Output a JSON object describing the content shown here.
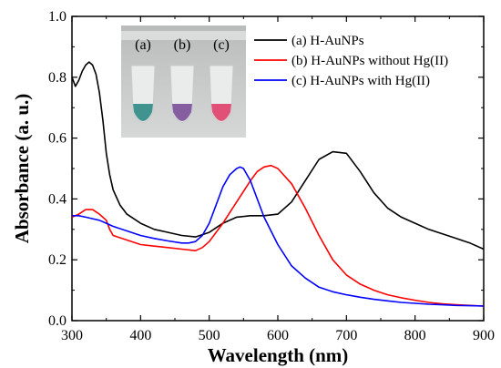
{
  "chart_data": {
    "type": "line",
    "xlabel": "Wavelength (nm)",
    "ylabel": "Absorbance (a. u.)",
    "xlim": [
      300,
      900
    ],
    "ylim": [
      0.0,
      1.0
    ],
    "xticks": [
      300,
      400,
      500,
      600,
      700,
      800,
      900
    ],
    "yticks": [
      0.0,
      0.2,
      0.4,
      0.6,
      0.8,
      1.0
    ],
    "ytick_labels": [
      "0.0",
      "0.2",
      "0.4",
      "0.6",
      "0.8",
      "1.0"
    ],
    "grid": false,
    "legend_position": "top-right",
    "series": [
      {
        "name": "(a) H-AuNPs",
        "color": "#000000",
        "x": [
          300,
          305,
          310,
          315,
          320,
          325,
          330,
          335,
          340,
          345,
          350,
          355,
          360,
          370,
          380,
          400,
          420,
          440,
          460,
          480,
          500,
          520,
          540,
          560,
          580,
          600,
          620,
          640,
          660,
          680,
          700,
          720,
          740,
          760,
          780,
          800,
          820,
          840,
          860,
          880,
          900
        ],
        "y": [
          0.8,
          0.77,
          0.79,
          0.82,
          0.84,
          0.85,
          0.84,
          0.81,
          0.75,
          0.66,
          0.55,
          0.48,
          0.43,
          0.38,
          0.35,
          0.32,
          0.3,
          0.29,
          0.28,
          0.275,
          0.29,
          0.32,
          0.34,
          0.345,
          0.345,
          0.35,
          0.39,
          0.46,
          0.53,
          0.555,
          0.55,
          0.49,
          0.42,
          0.37,
          0.34,
          0.32,
          0.3,
          0.285,
          0.27,
          0.255,
          0.235
        ]
      },
      {
        "name": "(b) H-AuNPs without Hg(II)",
        "color": "#ff0000",
        "x": [
          300,
          310,
          320,
          330,
          340,
          350,
          355,
          360,
          380,
          400,
          420,
          440,
          460,
          480,
          490,
          500,
          520,
          540,
          560,
          570,
          580,
          590,
          600,
          620,
          640,
          660,
          680,
          700,
          720,
          740,
          760,
          780,
          800,
          820,
          840,
          860,
          880,
          900
        ],
        "y": [
          0.34,
          0.35,
          0.365,
          0.365,
          0.35,
          0.33,
          0.3,
          0.28,
          0.265,
          0.25,
          0.245,
          0.24,
          0.235,
          0.23,
          0.24,
          0.26,
          0.32,
          0.39,
          0.46,
          0.49,
          0.505,
          0.51,
          0.5,
          0.45,
          0.37,
          0.28,
          0.2,
          0.15,
          0.12,
          0.1,
          0.085,
          0.075,
          0.067,
          0.06,
          0.055,
          0.052,
          0.05,
          0.048
        ]
      },
      {
        "name": "(c) H-AuNPs with Hg(II)",
        "color": "#0000ff",
        "x": [
          300,
          310,
          320,
          330,
          340,
          350,
          360,
          380,
          400,
          420,
          440,
          460,
          470,
          480,
          490,
          500,
          510,
          520,
          530,
          540,
          545,
          550,
          560,
          570,
          580,
          600,
          620,
          640,
          660,
          680,
          700,
          720,
          740,
          760,
          780,
          800,
          820,
          840,
          860,
          880,
          900
        ],
        "y": [
          0.345,
          0.345,
          0.34,
          0.335,
          0.33,
          0.32,
          0.31,
          0.295,
          0.28,
          0.27,
          0.262,
          0.255,
          0.255,
          0.26,
          0.28,
          0.32,
          0.38,
          0.44,
          0.48,
          0.5,
          0.505,
          0.5,
          0.46,
          0.4,
          0.34,
          0.25,
          0.18,
          0.14,
          0.11,
          0.095,
          0.085,
          0.077,
          0.07,
          0.065,
          0.06,
          0.057,
          0.054,
          0.052,
          0.05,
          0.049,
          0.048
        ]
      }
    ]
  },
  "inset": {
    "vial_labels": [
      "(a)",
      "(b)",
      "(c)"
    ],
    "vial_colors": [
      "#2f8a86",
      "#7a4f9a",
      "#e0406a"
    ]
  }
}
